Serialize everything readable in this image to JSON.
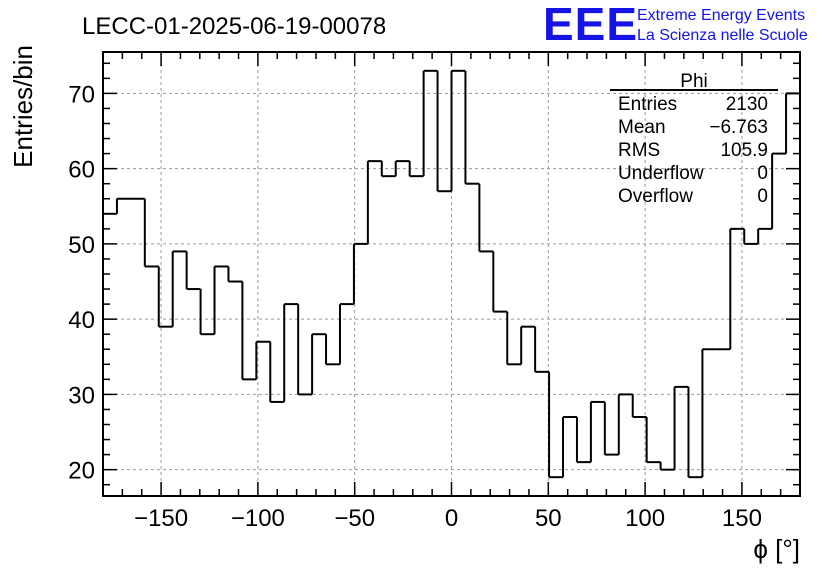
{
  "colors": {
    "histogram": "#000000",
    "grid": "#999999",
    "logo": "#1414e6",
    "background": "#ffffff"
  },
  "header": {
    "title": "LECC-01-2025-06-19-00078",
    "logo_text": "EEE",
    "logo_line1": "Extreme Energy Events",
    "logo_line2": "La Scienza nelle Scuole"
  },
  "stats": {
    "name": "Phi",
    "rows": [
      {
        "label": "Entries",
        "value": "2130"
      },
      {
        "label": "Mean",
        "value": "−6.763"
      },
      {
        "label": "RMS",
        "value": "105.9"
      },
      {
        "label": "Underflow",
        "value": "0"
      },
      {
        "label": "Overflow",
        "value": "0"
      }
    ]
  },
  "chart_data": {
    "type": "histogram",
    "title": "LECC-01-2025-06-19-00078",
    "xlabel": "ϕ [°]",
    "ylabel": "Entries/bin",
    "xlim": [
      -180,
      180
    ],
    "ylim": [
      16.5,
      75.5
    ],
    "bin_width": 7.2,
    "x_ticks": [
      -150,
      -100,
      -50,
      0,
      50,
      100,
      150
    ],
    "x_tick_labels": [
      "−150",
      "−100",
      "−50",
      "0",
      "50",
      "100",
      "150"
    ],
    "y_ticks": [
      20,
      30,
      40,
      50,
      60,
      70
    ],
    "y_tick_labels": [
      "20",
      "30",
      "40",
      "50",
      "60",
      "70"
    ],
    "grid": true,
    "values": [
      54,
      56,
      56,
      47,
      39,
      49,
      44,
      38,
      47,
      45,
      32,
      37,
      29,
      42,
      30,
      38,
      34,
      42,
      50,
      61,
      59,
      61,
      59,
      73,
      57,
      73,
      58,
      49,
      41,
      34,
      39,
      33,
      19,
      27,
      21,
      29,
      22,
      30,
      27,
      21,
      20,
      31,
      19,
      36,
      36,
      52,
      50,
      52,
      62,
      70
    ]
  }
}
